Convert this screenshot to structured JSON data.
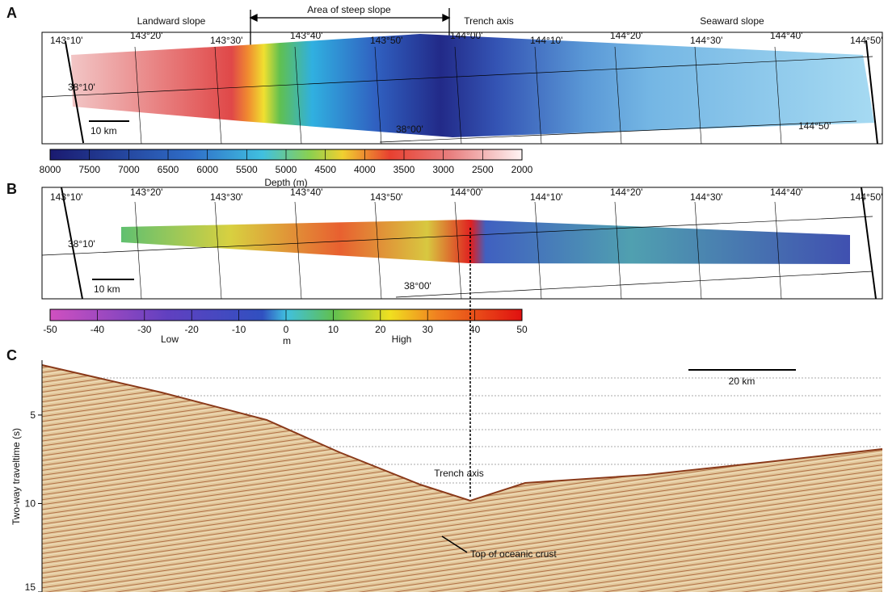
{
  "panel_a": {
    "label": "A",
    "annotations": {
      "landward": "Landward slope",
      "steep": "Area of steep slope",
      "trench": "Trench axis",
      "seaward": "Seaward slope"
    },
    "lon_labels": [
      "143°10'",
      "143°20'",
      "143°30'",
      "143°40'",
      "143°50'",
      "144°00'",
      "144°10'",
      "144°20'",
      "144°30'",
      "144°40'",
      "144°50'"
    ],
    "lat_labels": [
      "38°10'",
      "38°00'",
      "144°50'"
    ],
    "scale_bar": "10 km",
    "colorbar": {
      "title": "Depth (m)",
      "ticks": [
        8000,
        7500,
        7000,
        6500,
        6000,
        5500,
        5000,
        4500,
        4000,
        3500,
        3000,
        2500,
        2000
      ]
    }
  },
  "panel_b": {
    "label": "B",
    "lon_labels": [
      "143°10'",
      "143°20'",
      "143°30'",
      "143°40'",
      "143°50'",
      "144°00'",
      "144°10'",
      "144°20'",
      "144°30'",
      "144°40'",
      "144°50'"
    ],
    "lat_labels": [
      "38°10'",
      "38°00'"
    ],
    "scale_bar": "10 km",
    "colorbar": {
      "title": "m",
      "low": "Low",
      "high": "High",
      "ticks": [
        -50,
        -40,
        -30,
        -20,
        -10,
        0,
        10,
        20,
        30,
        40,
        50
      ]
    }
  },
  "panel_c": {
    "label": "C",
    "y_label": "Two-way traveltime (s)",
    "ylim": [
      1.9,
      15
    ],
    "yticks": [
      5,
      10,
      15
    ],
    "scale_bar": "20 km",
    "trench_axis": "Trench axis",
    "crust": "Top of oceanic crust"
  }
}
